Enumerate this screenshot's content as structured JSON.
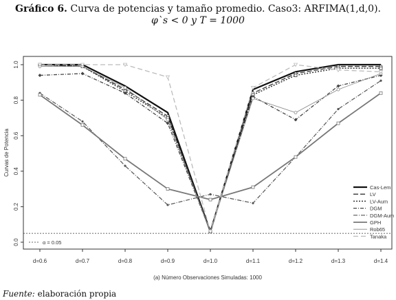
{
  "header": {
    "title_bold": "Gráfico 6.",
    "title_rest": " Curva de potencias y tamaño promedio. Caso3: ARFIMA(1,d,0).",
    "subtitle": "φ`s < 0 y T  =  1000"
  },
  "footer": {
    "source_label": "Fuente:",
    "source_text": " elaboración propia"
  },
  "chart_data": {
    "type": "line",
    "title": "",
    "xlabel": "(a) Número Observaciones Simuladas: 1000",
    "ylabel": "Curvas de Potencia",
    "ylim": [
      0,
      1
    ],
    "yticks": [
      "0.0",
      "0.2",
      "0.4",
      "0.6",
      "0.8",
      "1.0"
    ],
    "categories": [
      "d=0.6",
      "d=0.7",
      "d=0.8",
      "d=0.9",
      "d=1.0",
      "d=1.1",
      "d=1.2",
      "d=1.3",
      "d=1.4"
    ],
    "reference_line": {
      "value": 0.05,
      "label": "α = 0.05"
    },
    "legend_position": "bottom-right",
    "series": [
      {
        "name": "Cas-Lem",
        "color": "#111111",
        "values": [
          1.0,
          1.0,
          0.88,
          0.73,
          0.06,
          0.86,
          0.96,
          1.0,
          1.0
        ]
      },
      {
        "name": "LV",
        "color": "#333333",
        "values": [
          1.0,
          0.99,
          0.86,
          0.71,
          0.06,
          0.84,
          0.95,
          0.99,
          0.99
        ]
      },
      {
        "name": "LV-Aum",
        "color": "#333333",
        "values": [
          1.0,
          0.99,
          0.85,
          0.7,
          0.06,
          0.83,
          0.94,
          0.98,
          0.98
        ]
      },
      {
        "name": "DGM",
        "color": "#444444",
        "values": [
          0.94,
          0.95,
          0.84,
          0.67,
          0.06,
          0.82,
          0.69,
          0.88,
          0.94
        ]
      },
      {
        "name": "DGM-Aum",
        "color": "#555555",
        "values": [
          0.84,
          0.68,
          0.43,
          0.21,
          0.27,
          0.22,
          0.48,
          0.75,
          0.91
        ]
      },
      {
        "name": "GPH",
        "color": "#777777",
        "values": [
          0.83,
          0.66,
          0.47,
          0.3,
          0.24,
          0.31,
          0.48,
          0.67,
          0.84
        ]
      },
      {
        "name": "Rob65",
        "color": "#888888",
        "values": [
          0.99,
          0.99,
          0.87,
          0.69,
          0.06,
          0.81,
          0.73,
          0.86,
          0.95
        ]
      },
      {
        "name": "Tanaka",
        "color": "#bbbbbb",
        "values": [
          1.0,
          1.0,
          1.0,
          0.93,
          0.06,
          0.87,
          1.0,
          0.97,
          0.96
        ]
      }
    ]
  }
}
